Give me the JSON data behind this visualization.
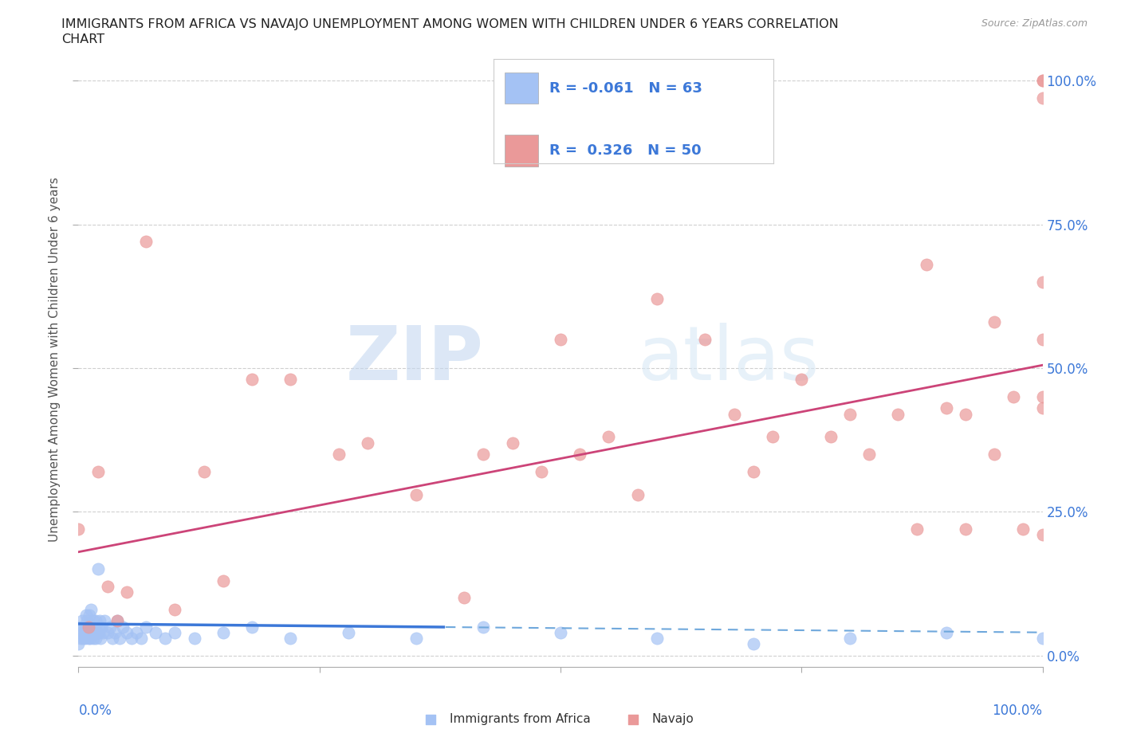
{
  "title_line1": "IMMIGRANTS FROM AFRICA VS NAVAJO UNEMPLOYMENT AMONG WOMEN WITH CHILDREN UNDER 6 YEARS CORRELATION",
  "title_line2": "CHART",
  "source": "Source: ZipAtlas.com",
  "ylabel": "Unemployment Among Women with Children Under 6 years",
  "xlim": [
    0.0,
    1.0
  ],
  "ylim": [
    -0.02,
    1.05
  ],
  "yticks": [
    0.0,
    0.25,
    0.5,
    0.75,
    1.0
  ],
  "xticks": [
    0.0,
    0.25,
    0.5,
    0.75,
    1.0
  ],
  "xticklabels_bottom_left": "0.0%",
  "xticklabels_bottom_right": "100.0%",
  "yticklabels": [
    "0.0%",
    "25.0%",
    "50.0%",
    "75.0%",
    "100.0%"
  ],
  "blue_color": "#a4c2f4",
  "pink_color": "#ea9999",
  "blue_line_color": "#3c78d8",
  "blue_dash_color": "#6fa8dc",
  "pink_line_color": "#cc4478",
  "legend_R_blue": "R = -0.061",
  "legend_N_blue": "N = 63",
  "legend_R_pink": "R =  0.326",
  "legend_N_pink": "N = 50",
  "blue_R": -0.061,
  "blue_N": 63,
  "pink_R": 0.326,
  "pink_N": 50,
  "blue_intercept": 0.055,
  "blue_slope": -0.015,
  "pink_intercept": 0.18,
  "pink_slope": 0.325,
  "watermark_zip": "ZIP",
  "watermark_atlas": "atlas",
  "background_color": "#ffffff",
  "grid_color": "#d0d0d0",
  "tick_label_color": "#3c78d8",
  "title_color": "#222222",
  "blue_scatter_x": [
    0.0,
    0.0,
    0.002,
    0.003,
    0.004,
    0.005,
    0.005,
    0.006,
    0.007,
    0.008,
    0.008,
    0.009,
    0.009,
    0.01,
    0.01,
    0.011,
    0.011,
    0.012,
    0.013,
    0.013,
    0.014,
    0.015,
    0.015,
    0.016,
    0.017,
    0.018,
    0.018,
    0.019,
    0.02,
    0.021,
    0.022,
    0.023,
    0.024,
    0.025,
    0.027,
    0.03,
    0.033,
    0.035,
    0.038,
    0.04,
    0.043,
    0.046,
    0.05,
    0.055,
    0.06,
    0.065,
    0.07,
    0.08,
    0.09,
    0.1,
    0.12,
    0.15,
    0.18,
    0.22,
    0.28,
    0.35,
    0.42,
    0.5,
    0.6,
    0.7,
    0.8,
    0.9,
    1.0
  ],
  "blue_scatter_y": [
    0.02,
    0.05,
    0.03,
    0.04,
    0.06,
    0.03,
    0.05,
    0.04,
    0.03,
    0.05,
    0.07,
    0.04,
    0.06,
    0.03,
    0.05,
    0.04,
    0.07,
    0.03,
    0.05,
    0.08,
    0.04,
    0.03,
    0.06,
    0.04,
    0.05,
    0.03,
    0.06,
    0.04,
    0.15,
    0.04,
    0.06,
    0.03,
    0.05,
    0.04,
    0.06,
    0.04,
    0.05,
    0.03,
    0.04,
    0.06,
    0.03,
    0.05,
    0.04,
    0.03,
    0.04,
    0.03,
    0.05,
    0.04,
    0.03,
    0.04,
    0.03,
    0.04,
    0.05,
    0.03,
    0.04,
    0.03,
    0.05,
    0.04,
    0.03,
    0.02,
    0.03,
    0.04,
    0.03
  ],
  "pink_scatter_x": [
    0.0,
    0.01,
    0.02,
    0.03,
    0.04,
    0.05,
    0.07,
    0.1,
    0.13,
    0.15,
    0.18,
    0.22,
    0.27,
    0.3,
    0.35,
    0.4,
    0.42,
    0.45,
    0.48,
    0.5,
    0.52,
    0.55,
    0.58,
    0.6,
    0.65,
    0.68,
    0.7,
    0.72,
    0.75,
    0.78,
    0.8,
    0.82,
    0.85,
    0.87,
    0.9,
    0.92,
    0.95,
    0.97,
    0.98,
    1.0,
    1.0,
    1.0,
    1.0,
    1.0,
    1.0,
    1.0,
    1.0,
    0.95,
    0.92,
    0.88
  ],
  "pink_scatter_y": [
    0.22,
    0.05,
    0.32,
    0.12,
    0.06,
    0.11,
    0.72,
    0.08,
    0.32,
    0.13,
    0.48,
    0.48,
    0.35,
    0.37,
    0.28,
    0.1,
    0.35,
    0.37,
    0.32,
    0.55,
    0.35,
    0.38,
    0.28,
    0.62,
    0.55,
    0.42,
    0.32,
    0.38,
    0.48,
    0.38,
    0.42,
    0.35,
    0.42,
    0.22,
    0.43,
    0.42,
    0.35,
    0.45,
    0.22,
    1.0,
    1.0,
    0.97,
    0.65,
    0.43,
    0.55,
    0.21,
    0.45,
    0.58,
    0.22,
    0.68
  ]
}
